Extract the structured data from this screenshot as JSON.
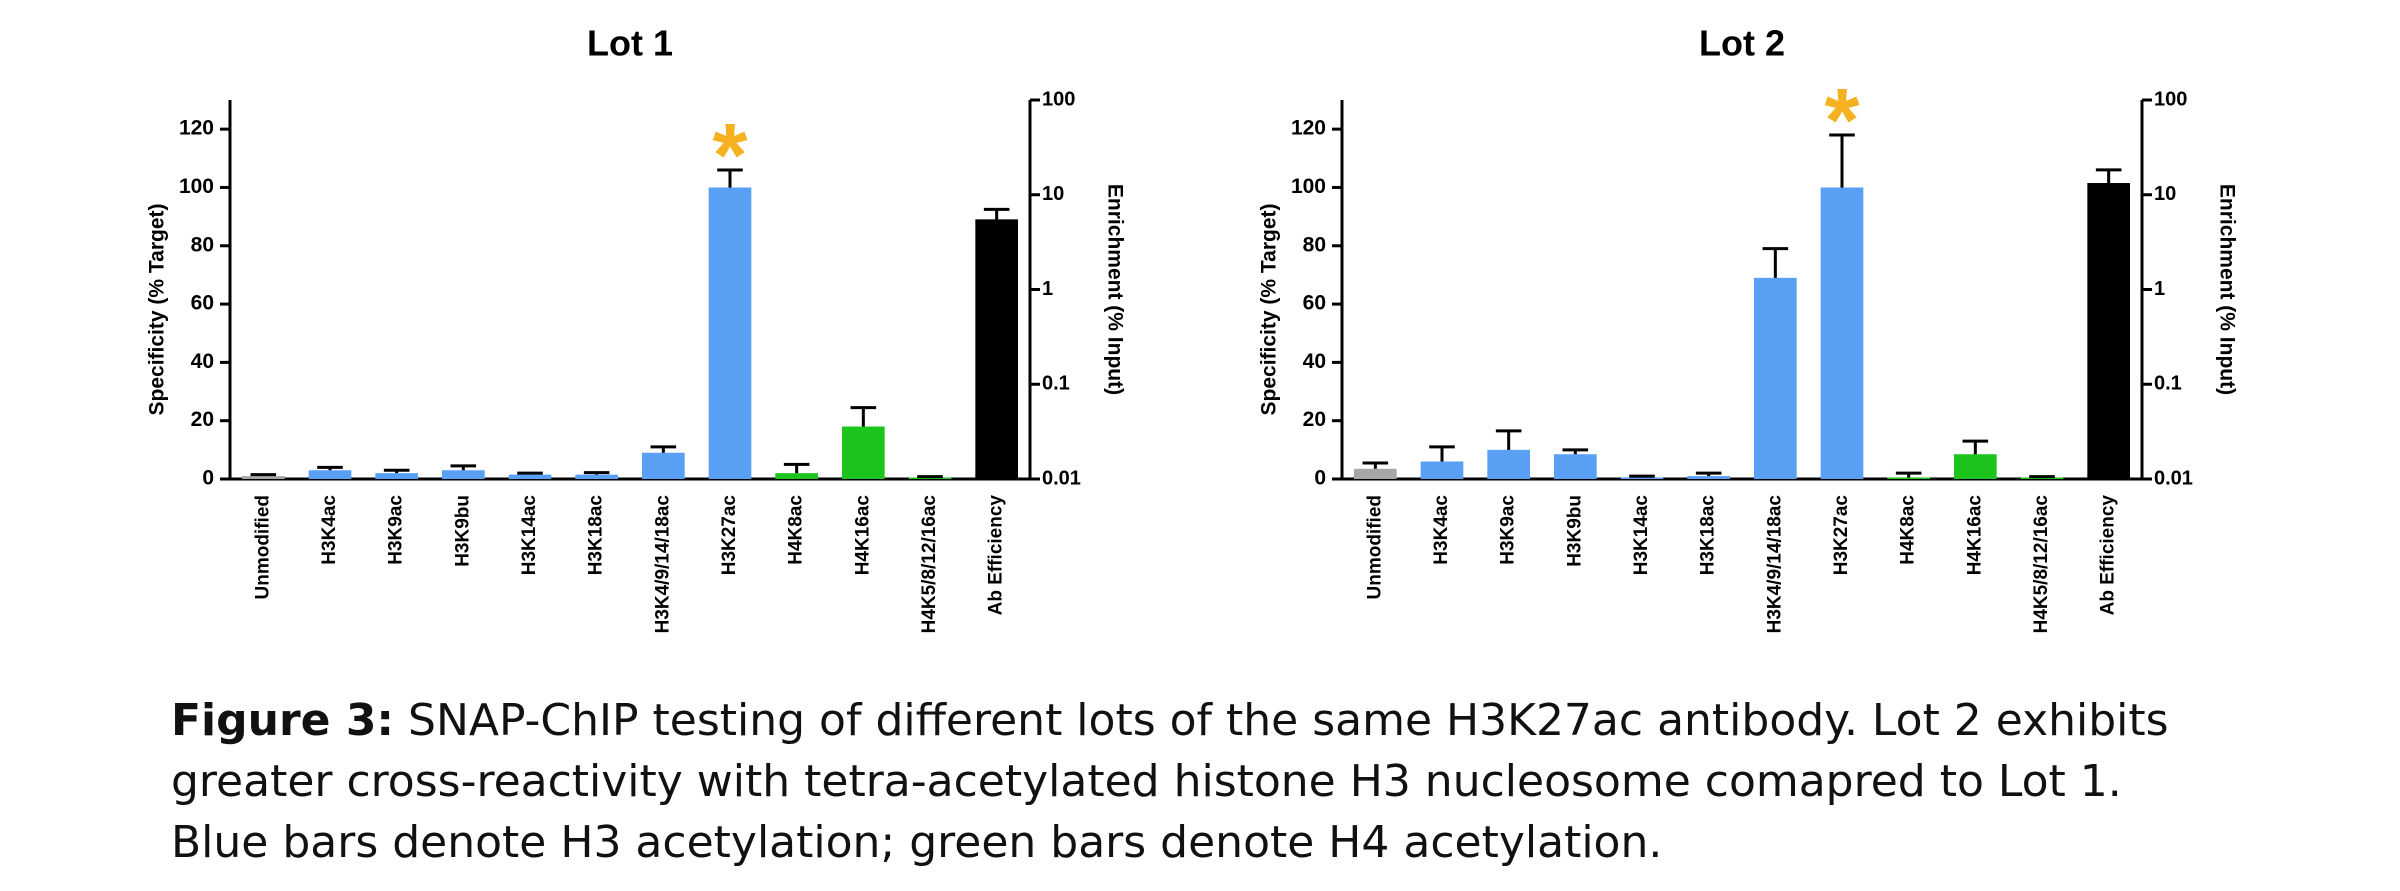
{
  "chart_data": [
    {
      "type": "bar",
      "title": "Lot 1",
      "ylabel": "Specificity (% Target)",
      "y2label": "Enrichment (% Input)",
      "categories": [
        "Unmodified",
        "H3K4ac",
        "H3K9ac",
        "H3K9bu",
        "H3K14ac",
        "H3K18ac",
        "H3K4/9/14/18ac",
        "H3K27ac",
        "H4K8ac",
        "H4K16ac",
        "H4K5/8/12/16ac",
        "Ab Efficiency"
      ],
      "values": [
        1,
        3,
        2,
        3,
        1.5,
        1.5,
        9,
        100,
        2,
        18,
        0.5,
        null
      ],
      "errors": [
        0.5,
        1,
        1,
        1.5,
        0.5,
        0.7,
        2,
        6,
        3,
        6.5,
        0.3,
        null
      ],
      "y2_values": [
        null,
        null,
        null,
        null,
        null,
        null,
        null,
        null,
        null,
        null,
        null,
        5.5
      ],
      "y2_errors": [
        null,
        null,
        null,
        null,
        null,
        null,
        null,
        null,
        null,
        null,
        null,
        1.5
      ],
      "colors": [
        "#a6a6a6",
        "#59a0f5",
        "#59a0f5",
        "#59a0f5",
        "#59a0f5",
        "#59a0f5",
        "#59a0f5",
        "#59a0f5",
        "#1ec41e",
        "#1ec41e",
        "#1ec41e",
        "#000000"
      ],
      "ylim": [
        0,
        130
      ],
      "yticks": [
        0,
        20,
        40,
        60,
        80,
        100,
        120
      ],
      "y2lim": [
        0.01,
        100
      ],
      "y2ticks": [
        0.01,
        0.1,
        1,
        10,
        100
      ],
      "y2log": true,
      "annotations": [
        {
          "text": "*",
          "category": "H3K27ac",
          "color": "#f5b120"
        }
      ]
    },
    {
      "type": "bar",
      "title": "Lot 2",
      "ylabel": "Specificity (% Target)",
      "y2label": "Enrichment (% Input)",
      "categories": [
        "Unmodified",
        "H3K4ac",
        "H3K9ac",
        "H3K9bu",
        "H3K14ac",
        "H3K18ac",
        "H3K4/9/14/18ac",
        "H3K27ac",
        "H4K8ac",
        "H4K16ac",
        "H4K5/8/12/16ac",
        "Ab Efficiency"
      ],
      "values": [
        3.5,
        6,
        10,
        8.5,
        0.5,
        1,
        69,
        100,
        0.5,
        8.5,
        0.5,
        null
      ],
      "errors": [
        2,
        5,
        6.5,
        1.5,
        0.5,
        1,
        10,
        18,
        1.5,
        4.5,
        0.3,
        null
      ],
      "y2_values": [
        null,
        null,
        null,
        null,
        null,
        null,
        null,
        null,
        null,
        null,
        null,
        13.3
      ],
      "y2_errors": [
        null,
        null,
        null,
        null,
        null,
        null,
        null,
        null,
        null,
        null,
        null,
        5
      ],
      "colors": [
        "#a6a6a6",
        "#59a0f5",
        "#59a0f5",
        "#59a0f5",
        "#59a0f5",
        "#59a0f5",
        "#59a0f5",
        "#59a0f5",
        "#1ec41e",
        "#1ec41e",
        "#1ec41e",
        "#000000"
      ],
      "ylim": [
        0,
        130
      ],
      "yticks": [
        0,
        20,
        40,
        60,
        80,
        100,
        120
      ],
      "y2lim": [
        0.01,
        100
      ],
      "y2ticks": [
        0.01,
        0.1,
        1,
        10,
        100
      ],
      "y2log": true,
      "annotations": [
        {
          "text": "*",
          "category": "H3K27ac",
          "color": "#f5b120"
        }
      ]
    }
  ],
  "caption": {
    "label": "Figure 3:",
    "lines": [
      "SNAP-ChIP testing of different lots of the same H3K27ac antibody. Lot 2 exhibits",
      "greater cross-reactivity with tetra-acetylated histone H3 nucleosome comapred to Lot 1.",
      "Blue bars denote H3 acetylation; green bars denote H4 acetylation."
    ]
  }
}
